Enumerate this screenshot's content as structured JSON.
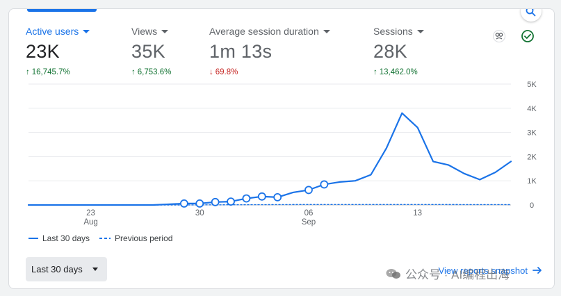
{
  "metrics": [
    {
      "label": "Active users",
      "value": "23K",
      "delta": "16,745.7%",
      "direction": "up",
      "active": true
    },
    {
      "label": "Views",
      "value": "35K",
      "delta": "6,753.6%",
      "direction": "up",
      "active": false
    },
    {
      "label": "Average session duration",
      "value": "1m 13s",
      "delta": "69.8%",
      "direction": "down",
      "active": false
    },
    {
      "label": "Sessions",
      "value": "28K",
      "delta": "13,462.0%",
      "direction": "up",
      "active": false
    }
  ],
  "icons": {
    "insights": "search-sparkle-icon",
    "compare": "compare-icon",
    "status": "check-circle-icon",
    "arrow": "arrow-right-icon"
  },
  "colors": {
    "accent": "#1a73e8",
    "up": "#137333",
    "down": "#c5221f"
  },
  "chart_data": {
    "type": "line",
    "x_tick_labels": [
      {
        "day": "23",
        "month": "Aug"
      },
      {
        "day": "30",
        "month": ""
      },
      {
        "day": "06",
        "month": "Sep"
      },
      {
        "day": "13",
        "month": ""
      }
    ],
    "y_tick_labels": [
      "0",
      "1K",
      "2K",
      "3K",
      "4K",
      "5K"
    ],
    "ylim": [
      0,
      5000
    ],
    "legend": [
      "Last 30 days",
      "Previous period"
    ],
    "series": [
      {
        "name": "Last 30 days",
        "style": "solid",
        "points": [
          {
            "date": "Aug 19",
            "value": 0
          },
          {
            "date": "Aug 23",
            "value": 0
          },
          {
            "date": "Aug 27",
            "value": 0
          },
          {
            "date": "Aug 28",
            "value": 30
          },
          {
            "date": "Aug 29",
            "value": 60
          },
          {
            "date": "Aug 30",
            "value": 60
          },
          {
            "date": "Aug 31",
            "value": 120
          },
          {
            "date": "Sep 1",
            "value": 140
          },
          {
            "date": "Sep 2",
            "value": 270
          },
          {
            "date": "Sep 3",
            "value": 350
          },
          {
            "date": "Sep 4",
            "value": 320
          },
          {
            "date": "Sep 5",
            "value": 520
          },
          {
            "date": "Sep 6",
            "value": 620
          },
          {
            "date": "Sep 7",
            "value": 850
          },
          {
            "date": "Sep 8",
            "value": 950
          },
          {
            "date": "Sep 9",
            "value": 1000
          },
          {
            "date": "Sep 10",
            "value": 1250
          },
          {
            "date": "Sep 11",
            "value": 2350
          },
          {
            "date": "Sep 12",
            "value": 3800
          },
          {
            "date": "Sep 13",
            "value": 3200
          },
          {
            "date": "Sep 14",
            "value": 1800
          },
          {
            "date": "Sep 15",
            "value": 1650
          },
          {
            "date": "Sep 16",
            "value": 1300
          },
          {
            "date": "Sep 17",
            "value": 1050
          },
          {
            "date": "Sep 18",
            "value": 1350
          },
          {
            "date": "Sep 19",
            "value": 1800
          }
        ],
        "markers": [
          "Aug 29",
          "Aug 30",
          "Aug 31",
          "Sep 1",
          "Sep 2",
          "Sep 3",
          "Sep 4",
          "Sep 6",
          "Sep 7"
        ]
      },
      {
        "name": "Previous period",
        "style": "dashed",
        "points": [
          {
            "date": "Aug 19",
            "value": 0
          },
          {
            "date": "Aug 29",
            "value": 0
          },
          {
            "date": "Sep 1",
            "value": 10
          },
          {
            "date": "Sep 6",
            "value": 20
          },
          {
            "date": "Sep 13",
            "value": 20
          },
          {
            "date": "Sep 19",
            "value": 15
          }
        ]
      }
    ]
  },
  "footer": {
    "date_range": "Last 30 days",
    "snapshot_link": "View reports snapshot",
    "watermark": "公众号 · AI编程出海"
  }
}
